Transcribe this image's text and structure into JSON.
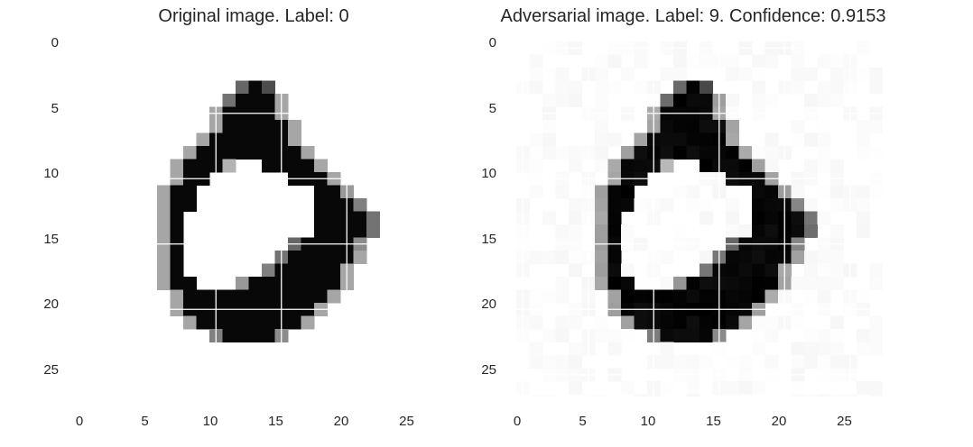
{
  "panels": [
    {
      "id": "original",
      "title": "Original image. Label: 0",
      "label": 0,
      "background_noise": false,
      "xticks": [
        "0",
        "5",
        "10",
        "15",
        "20",
        "25"
      ],
      "yticks": [
        "0",
        "5",
        "10",
        "15",
        "20",
        "25"
      ]
    },
    {
      "id": "adversarial",
      "title": "Adversarial image. Label: 9. Confidence: 0.9153",
      "label": 9,
      "confidence": 0.9153,
      "background_noise": true,
      "xticks": [
        "0",
        "5",
        "10",
        "15",
        "20",
        "25"
      ],
      "yticks": [
        "0",
        "5",
        "10",
        "15",
        "20",
        "25"
      ]
    }
  ],
  "colormap": "gray_r",
  "grid": true
}
